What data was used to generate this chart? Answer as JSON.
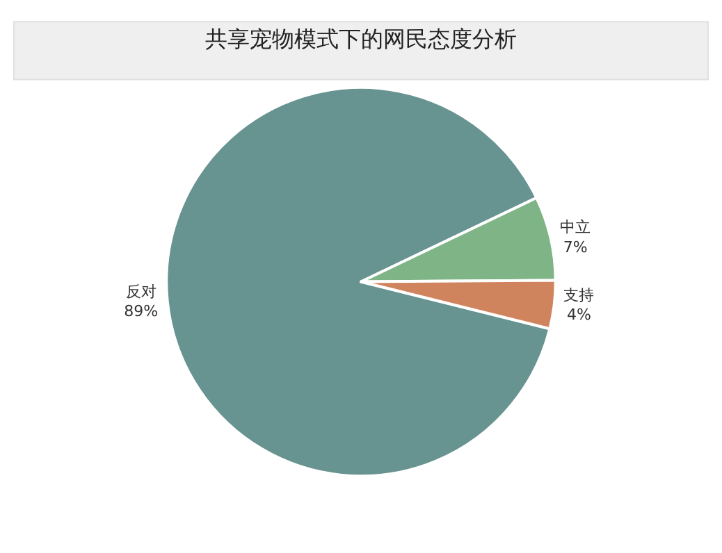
{
  "chart_data": {
    "type": "pie",
    "title": "共享宠物模式下的网民态度分析",
    "categories": [
      "反对",
      "中立",
      "支持"
    ],
    "values": [
      89,
      7,
      4
    ],
    "colors": [
      "#679390",
      "#7fb486",
      "#d0845e"
    ],
    "value_labels": [
      "89%",
      "7%",
      "4%"
    ],
    "legend": false
  }
}
